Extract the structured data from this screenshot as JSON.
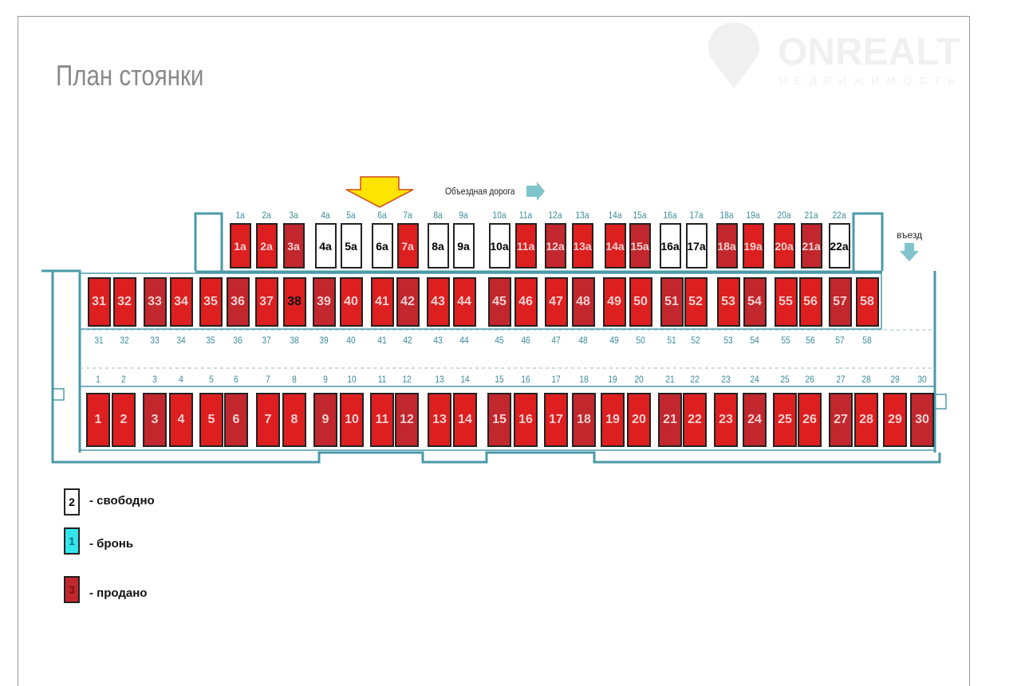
{
  "title": "План стоянки",
  "watermark": {
    "brand": "ONREALT",
    "subtitle": "НЕДВИЖИМОСТЬ"
  },
  "road_label": "Объездная дорога",
  "entry_label": "въезд",
  "colors": {
    "sold": "#dd1f1f",
    "sold_dark": "#c1272d",
    "free": "#ffffff",
    "reserved": "#33e6ee",
    "walls": "#4a9aa8",
    "arrow": "#ffe400"
  },
  "legend": [
    {
      "sample": "2",
      "label": "- свободно",
      "status": "free"
    },
    {
      "sample": "1",
      "label": "- бронь",
      "status": "reserved"
    },
    {
      "sample": "3",
      "label": "- продано",
      "status": "sold"
    }
  ],
  "rows": {
    "top": [
      {
        "id": "1a",
        "status": "sold"
      },
      {
        "id": "2a",
        "status": "sold"
      },
      {
        "id": "3a",
        "status": "sold"
      },
      {
        "id": "4a",
        "status": "free"
      },
      {
        "id": "5a",
        "status": "free"
      },
      {
        "id": "6a",
        "status": "free"
      },
      {
        "id": "7a",
        "status": "sold"
      },
      {
        "id": "8a",
        "status": "free"
      },
      {
        "id": "9a",
        "status": "free"
      },
      {
        "id": "10a",
        "status": "free"
      },
      {
        "id": "11a",
        "status": "sold"
      },
      {
        "id": "12a",
        "status": "sold"
      },
      {
        "id": "13a",
        "status": "sold"
      },
      {
        "id": "14a",
        "status": "sold"
      },
      {
        "id": "15a",
        "status": "sold"
      },
      {
        "id": "16a",
        "status": "free"
      },
      {
        "id": "17a",
        "status": "free"
      },
      {
        "id": "18a",
        "status": "sold"
      },
      {
        "id": "19a",
        "status": "sold"
      },
      {
        "id": "20a",
        "status": "sold"
      },
      {
        "id": "21a",
        "status": "sold"
      },
      {
        "id": "22a",
        "status": "free"
      }
    ],
    "middle": [
      "31",
      "32",
      "33",
      "34",
      "35",
      "36",
      "37",
      "38",
      "39",
      "40",
      "41",
      "42",
      "43",
      "44",
      "45",
      "46",
      "47",
      "48",
      "49",
      "50",
      "51",
      "52",
      "53",
      "54",
      "55",
      "56",
      "57",
      "58"
    ],
    "middle_status": "sold",
    "bottom": [
      "1",
      "2",
      "3",
      "4",
      "5",
      "6",
      "7",
      "8",
      "9",
      "10",
      "11",
      "12",
      "13",
      "14",
      "15",
      "16",
      "17",
      "18",
      "19",
      "20",
      "21",
      "22",
      "23",
      "24",
      "25",
      "26",
      "27",
      "28",
      "29",
      "30"
    ],
    "bottom_status": "sold"
  }
}
